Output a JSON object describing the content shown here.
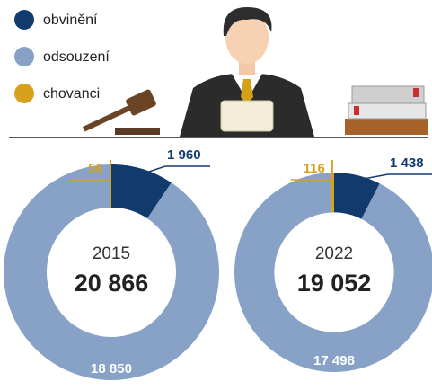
{
  "chart_data": [
    {
      "type": "donut",
      "title": "2015",
      "categories": [
        "obvinění",
        "odsouzení",
        "chovanci"
      ],
      "colors": [
        "#123b6d",
        "#87a2c6",
        "#d6a21e"
      ],
      "values": [
        1960,
        18850,
        56
      ],
      "value_labels": [
        "1 960",
        "18 850",
        "56"
      ],
      "total": {
        "value": 20866,
        "label": "20 866"
      }
    },
    {
      "type": "donut",
      "title": "2022",
      "categories": [
        "obvinění",
        "odsouzení",
        "chovanci"
      ],
      "colors": [
        "#123b6d",
        "#87a2c6",
        "#d6a21e"
      ],
      "values": [
        1438,
        17498,
        116
      ],
      "value_labels": [
        "1 438",
        "17 498",
        "116"
      ],
      "total": {
        "value": 19052,
        "label": "19 052"
      }
    }
  ]
}
